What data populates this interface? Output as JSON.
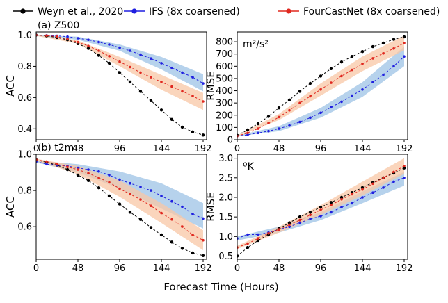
{
  "legend": [
    {
      "name": "Weyn et al., 2020",
      "color": "#000000"
    },
    {
      "name": "IFS (8x coarsened)",
      "color": "#1f1fe0"
    },
    {
      "name": "FourCastNet (8x coarsened)",
      "color": "#e0281f"
    }
  ],
  "xlabel": "Forecast Time (Hours)",
  "colors": {
    "weyn": "#000000",
    "ifs": "#1f1fe0",
    "ifs_band": "#9ec3e6",
    "fcn": "#e0281f",
    "fcn_band": "#f8c7a6"
  },
  "chart_data": [
    {
      "type": "line",
      "panel_title": "(a) Z500",
      "annotation": "",
      "ylabel": "ACC",
      "xlim": [
        0,
        196
      ],
      "ylim": [
        0.33,
        1.02
      ],
      "xticks": [
        0,
        48,
        96,
        144,
        192
      ],
      "yticks": [
        0.4,
        0.6,
        0.8,
        1.0
      ],
      "ytick_labels": [
        "0.4",
        "0.6",
        "0.8",
        "1.0"
      ],
      "series": [
        {
          "name": "Weyn et al., 2020",
          "x": [
            0,
            12,
            24,
            36,
            48,
            60,
            72,
            84,
            96,
            108,
            120,
            132,
            144,
            156,
            168,
            180,
            192
          ],
          "y": [
            1.0,
            0.995,
            0.985,
            0.97,
            0.945,
            0.915,
            0.87,
            0.82,
            0.76,
            0.7,
            0.64,
            0.58,
            0.52,
            0.46,
            0.41,
            0.38,
            0.36
          ]
        },
        {
          "name": "IFS (8x coarsened)",
          "x": [
            0,
            12,
            24,
            36,
            48,
            60,
            72,
            84,
            96,
            108,
            120,
            132,
            144,
            156,
            168,
            180,
            192
          ],
          "y": [
            1.0,
            0.998,
            0.995,
            0.99,
            0.98,
            0.97,
            0.955,
            0.94,
            0.92,
            0.9,
            0.875,
            0.85,
            0.82,
            0.79,
            0.76,
            0.73,
            0.69
          ]
        },
        {
          "name": "FourCastNet (8x coarsened)",
          "x": [
            0,
            12,
            24,
            36,
            48,
            60,
            72,
            84,
            96,
            108,
            120,
            132,
            144,
            156,
            168,
            180,
            192
          ],
          "y": [
            1.0,
            0.997,
            0.99,
            0.975,
            0.955,
            0.93,
            0.9,
            0.865,
            0.83,
            0.795,
            0.76,
            0.73,
            0.7,
            0.67,
            0.64,
            0.61,
            0.575
          ]
        }
      ],
      "bands": [
        {
          "series": "IFS (8x coarsened)",
          "x": [
            0,
            48,
            96,
            144,
            192
          ],
          "low": [
            0.995,
            0.97,
            0.9,
            0.78,
            0.64
          ],
          "high": [
            1.0,
            0.99,
            0.94,
            0.86,
            0.75
          ]
        },
        {
          "series": "FourCastNet (8x coarsened)",
          "x": [
            0,
            48,
            96,
            144,
            192
          ],
          "low": [
            0.995,
            0.945,
            0.8,
            0.65,
            0.52
          ],
          "high": [
            1.0,
            0.965,
            0.86,
            0.745,
            0.63
          ]
        }
      ]
    },
    {
      "type": "line",
      "panel_title": "",
      "annotation": "m²/s²",
      "ylabel": "RMSE",
      "xlim": [
        0,
        196
      ],
      "ylim": [
        0,
        880
      ],
      "xticks": [
        0,
        48,
        96,
        144,
        192
      ],
      "yticks": [
        0,
        100,
        200,
        300,
        400,
        500,
        600,
        700,
        800
      ],
      "ytick_labels": [
        "0",
        "100",
        "200",
        "300",
        "400",
        "500",
        "600",
        "700",
        "800"
      ],
      "series": [
        {
          "name": "Weyn et al., 2020",
          "x": [
            0,
            12,
            24,
            36,
            48,
            60,
            72,
            84,
            96,
            108,
            120,
            132,
            144,
            156,
            168,
            180,
            192
          ],
          "y": [
            35,
            80,
            130,
            190,
            260,
            325,
            395,
            460,
            520,
            580,
            635,
            680,
            720,
            760,
            790,
            820,
            840
          ]
        },
        {
          "name": "IFS (8x coarsened)",
          "x": [
            0,
            12,
            24,
            36,
            48,
            60,
            72,
            84,
            96,
            108,
            120,
            132,
            144,
            156,
            168,
            180,
            192
          ],
          "y": [
            30,
            40,
            55,
            70,
            90,
            115,
            145,
            180,
            220,
            265,
            310,
            360,
            410,
            470,
            530,
            600,
            680
          ]
        },
        {
          "name": "FourCastNet (8x coarsened)",
          "x": [
            0,
            12,
            24,
            36,
            48,
            60,
            72,
            84,
            96,
            108,
            120,
            132,
            144,
            156,
            168,
            180,
            192
          ],
          "y": [
            30,
            55,
            90,
            135,
            185,
            240,
            300,
            355,
            410,
            465,
            520,
            570,
            620,
            665,
            705,
            745,
            790
          ]
        }
      ],
      "bands": [
        {
          "series": "IFS (8x coarsened)",
          "x": [
            0,
            48,
            96,
            144,
            192
          ],
          "low": [
            28,
            70,
            180,
            350,
            600
          ],
          "high": [
            34,
            110,
            260,
            470,
            760
          ]
        },
        {
          "series": "FourCastNet (8x coarsened)",
          "x": [
            0,
            48,
            96,
            144,
            192
          ],
          "low": [
            28,
            160,
            360,
            560,
            730
          ],
          "high": [
            34,
            210,
            460,
            680,
            850
          ]
        }
      ]
    },
    {
      "type": "line",
      "panel_title": "(b) t2m",
      "annotation": "",
      "ylabel": "ACC",
      "xlim": [
        0,
        196
      ],
      "ylim": [
        0.42,
        1.0
      ],
      "xticks": [
        0,
        48,
        96,
        144,
        192
      ],
      "yticks": [
        0.6,
        0.8,
        1.0
      ],
      "ytick_labels": [
        "0.6",
        "0.8",
        "1.0"
      ],
      "series": [
        {
          "name": "Weyn et al., 2020",
          "x": [
            0,
            12,
            24,
            36,
            48,
            60,
            72,
            84,
            96,
            108,
            120,
            132,
            144,
            156,
            168,
            180,
            192
          ],
          "y": [
            0.97,
            0.955,
            0.94,
            0.915,
            0.885,
            0.855,
            0.815,
            0.77,
            0.725,
            0.68,
            0.64,
            0.595,
            0.555,
            0.515,
            0.48,
            0.455,
            0.44
          ]
        },
        {
          "name": "IFS (8x coarsened)",
          "x": [
            0,
            12,
            24,
            36,
            48,
            60,
            72,
            84,
            96,
            108,
            120,
            132,
            144,
            156,
            168,
            180,
            192
          ],
          "y": [
            0.96,
            0.945,
            0.94,
            0.935,
            0.925,
            0.915,
            0.905,
            0.885,
            0.86,
            0.84,
            0.82,
            0.8,
            0.77,
            0.74,
            0.71,
            0.67,
            0.645
          ]
        },
        {
          "name": "FourCastNet (8x coarsened)",
          "x": [
            0,
            12,
            24,
            36,
            48,
            60,
            72,
            84,
            96,
            108,
            120,
            132,
            144,
            156,
            168,
            180,
            192
          ],
          "y": [
            0.97,
            0.96,
            0.945,
            0.93,
            0.915,
            0.895,
            0.87,
            0.845,
            0.81,
            0.78,
            0.75,
            0.715,
            0.675,
            0.64,
            0.6,
            0.555,
            0.525
          ]
        }
      ],
      "bands": [
        {
          "series": "IFS (8x coarsened)",
          "x": [
            0,
            48,
            96,
            144,
            192
          ],
          "low": [
            0.955,
            0.9,
            0.81,
            0.7,
            0.59
          ],
          "high": [
            0.965,
            0.945,
            0.905,
            0.84,
            0.73
          ]
        },
        {
          "series": "FourCastNet (8x coarsened)",
          "x": [
            0,
            48,
            96,
            144,
            192
          ],
          "low": [
            0.965,
            0.89,
            0.765,
            0.62,
            0.47
          ],
          "high": [
            0.975,
            0.935,
            0.855,
            0.73,
            0.58
          ]
        }
      ]
    },
    {
      "type": "line",
      "panel_title": "",
      "annotation": "ºK",
      "ylabel": "RMSE",
      "xlim": [
        0,
        196
      ],
      "ylim": [
        0.42,
        3.1
      ],
      "xticks": [
        0,
        48,
        96,
        144,
        192
      ],
      "yticks": [
        0.5,
        1.0,
        1.5,
        2.0,
        2.5,
        3.0
      ],
      "ytick_labels": [
        "0.5",
        "1.0",
        "1.5",
        "2.0",
        "2.5",
        "3.0"
      ],
      "series": [
        {
          "name": "Weyn et al., 2020",
          "x": [
            0,
            12,
            24,
            36,
            48,
            60,
            72,
            84,
            96,
            108,
            120,
            132,
            144,
            156,
            168,
            180,
            192
          ],
          "y": [
            0.5,
            0.72,
            0.9,
            1.05,
            1.2,
            1.35,
            1.5,
            1.62,
            1.75,
            1.87,
            2.0,
            2.12,
            2.25,
            2.38,
            2.5,
            2.62,
            2.75
          ]
        },
        {
          "name": "IFS (8x coarsened)",
          "x": [
            0,
            12,
            24,
            36,
            48,
            60,
            72,
            84,
            96,
            108,
            120,
            132,
            144,
            156,
            168,
            180,
            192
          ],
          "y": [
            0.95,
            1.05,
            1.05,
            1.1,
            1.18,
            1.25,
            1.35,
            1.45,
            1.52,
            1.62,
            1.75,
            1.85,
            2.0,
            2.12,
            2.25,
            2.4,
            2.5
          ]
        },
        {
          "name": "FourCastNet (8x coarsened)",
          "x": [
            0,
            12,
            24,
            36,
            48,
            60,
            72,
            84,
            96,
            108,
            120,
            132,
            144,
            156,
            168,
            180,
            192
          ],
          "y": [
            0.72,
            0.82,
            0.95,
            1.08,
            1.18,
            1.3,
            1.42,
            1.55,
            1.68,
            1.8,
            1.95,
            2.08,
            2.2,
            2.35,
            2.5,
            2.65,
            2.8
          ]
        }
      ],
      "bands": [
        {
          "series": "IFS (8x coarsened)",
          "x": [
            0,
            48,
            96,
            144,
            192
          ],
          "low": [
            0.9,
            1.1,
            1.42,
            1.85,
            2.3
          ],
          "high": [
            1.0,
            1.25,
            1.62,
            2.15,
            2.65
          ]
        },
        {
          "series": "FourCastNet (8x coarsened)",
          "x": [
            0,
            48,
            96,
            144,
            192
          ],
          "low": [
            0.68,
            1.1,
            1.55,
            2.05,
            2.6
          ],
          "high": [
            0.76,
            1.25,
            1.8,
            2.4,
            3.0
          ]
        }
      ]
    }
  ]
}
